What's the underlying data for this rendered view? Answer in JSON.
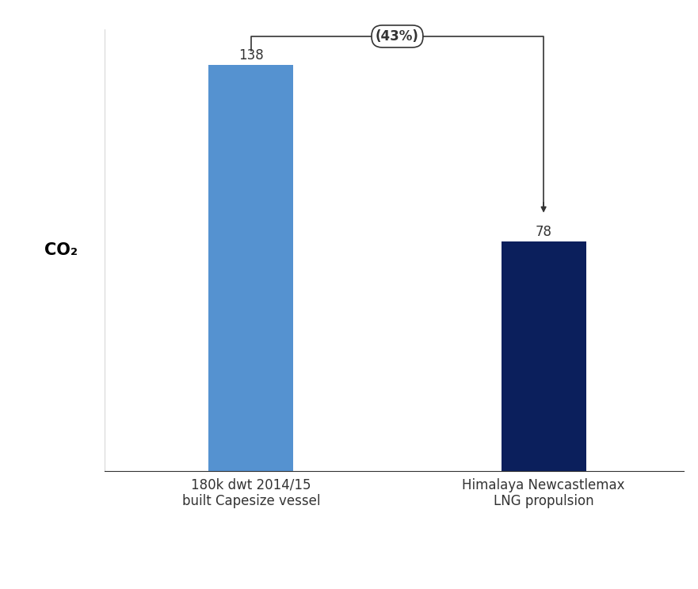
{
  "chart_data": {
    "type": "bar",
    "y_label": "CO₂",
    "categories": [
      "180k dwt 2014/15\nbuilt Capesize vessel",
      "Himalaya Newcastlemax\nLNG propulsion"
    ],
    "values": [
      138,
      78
    ],
    "colors": [
      "#5592d0",
      "#0b1f5c"
    ],
    "ylim": [
      0,
      150
    ],
    "yticks": [],
    "data_labels": true,
    "tick_labels": "x",
    "annotation": "(43%)"
  }
}
